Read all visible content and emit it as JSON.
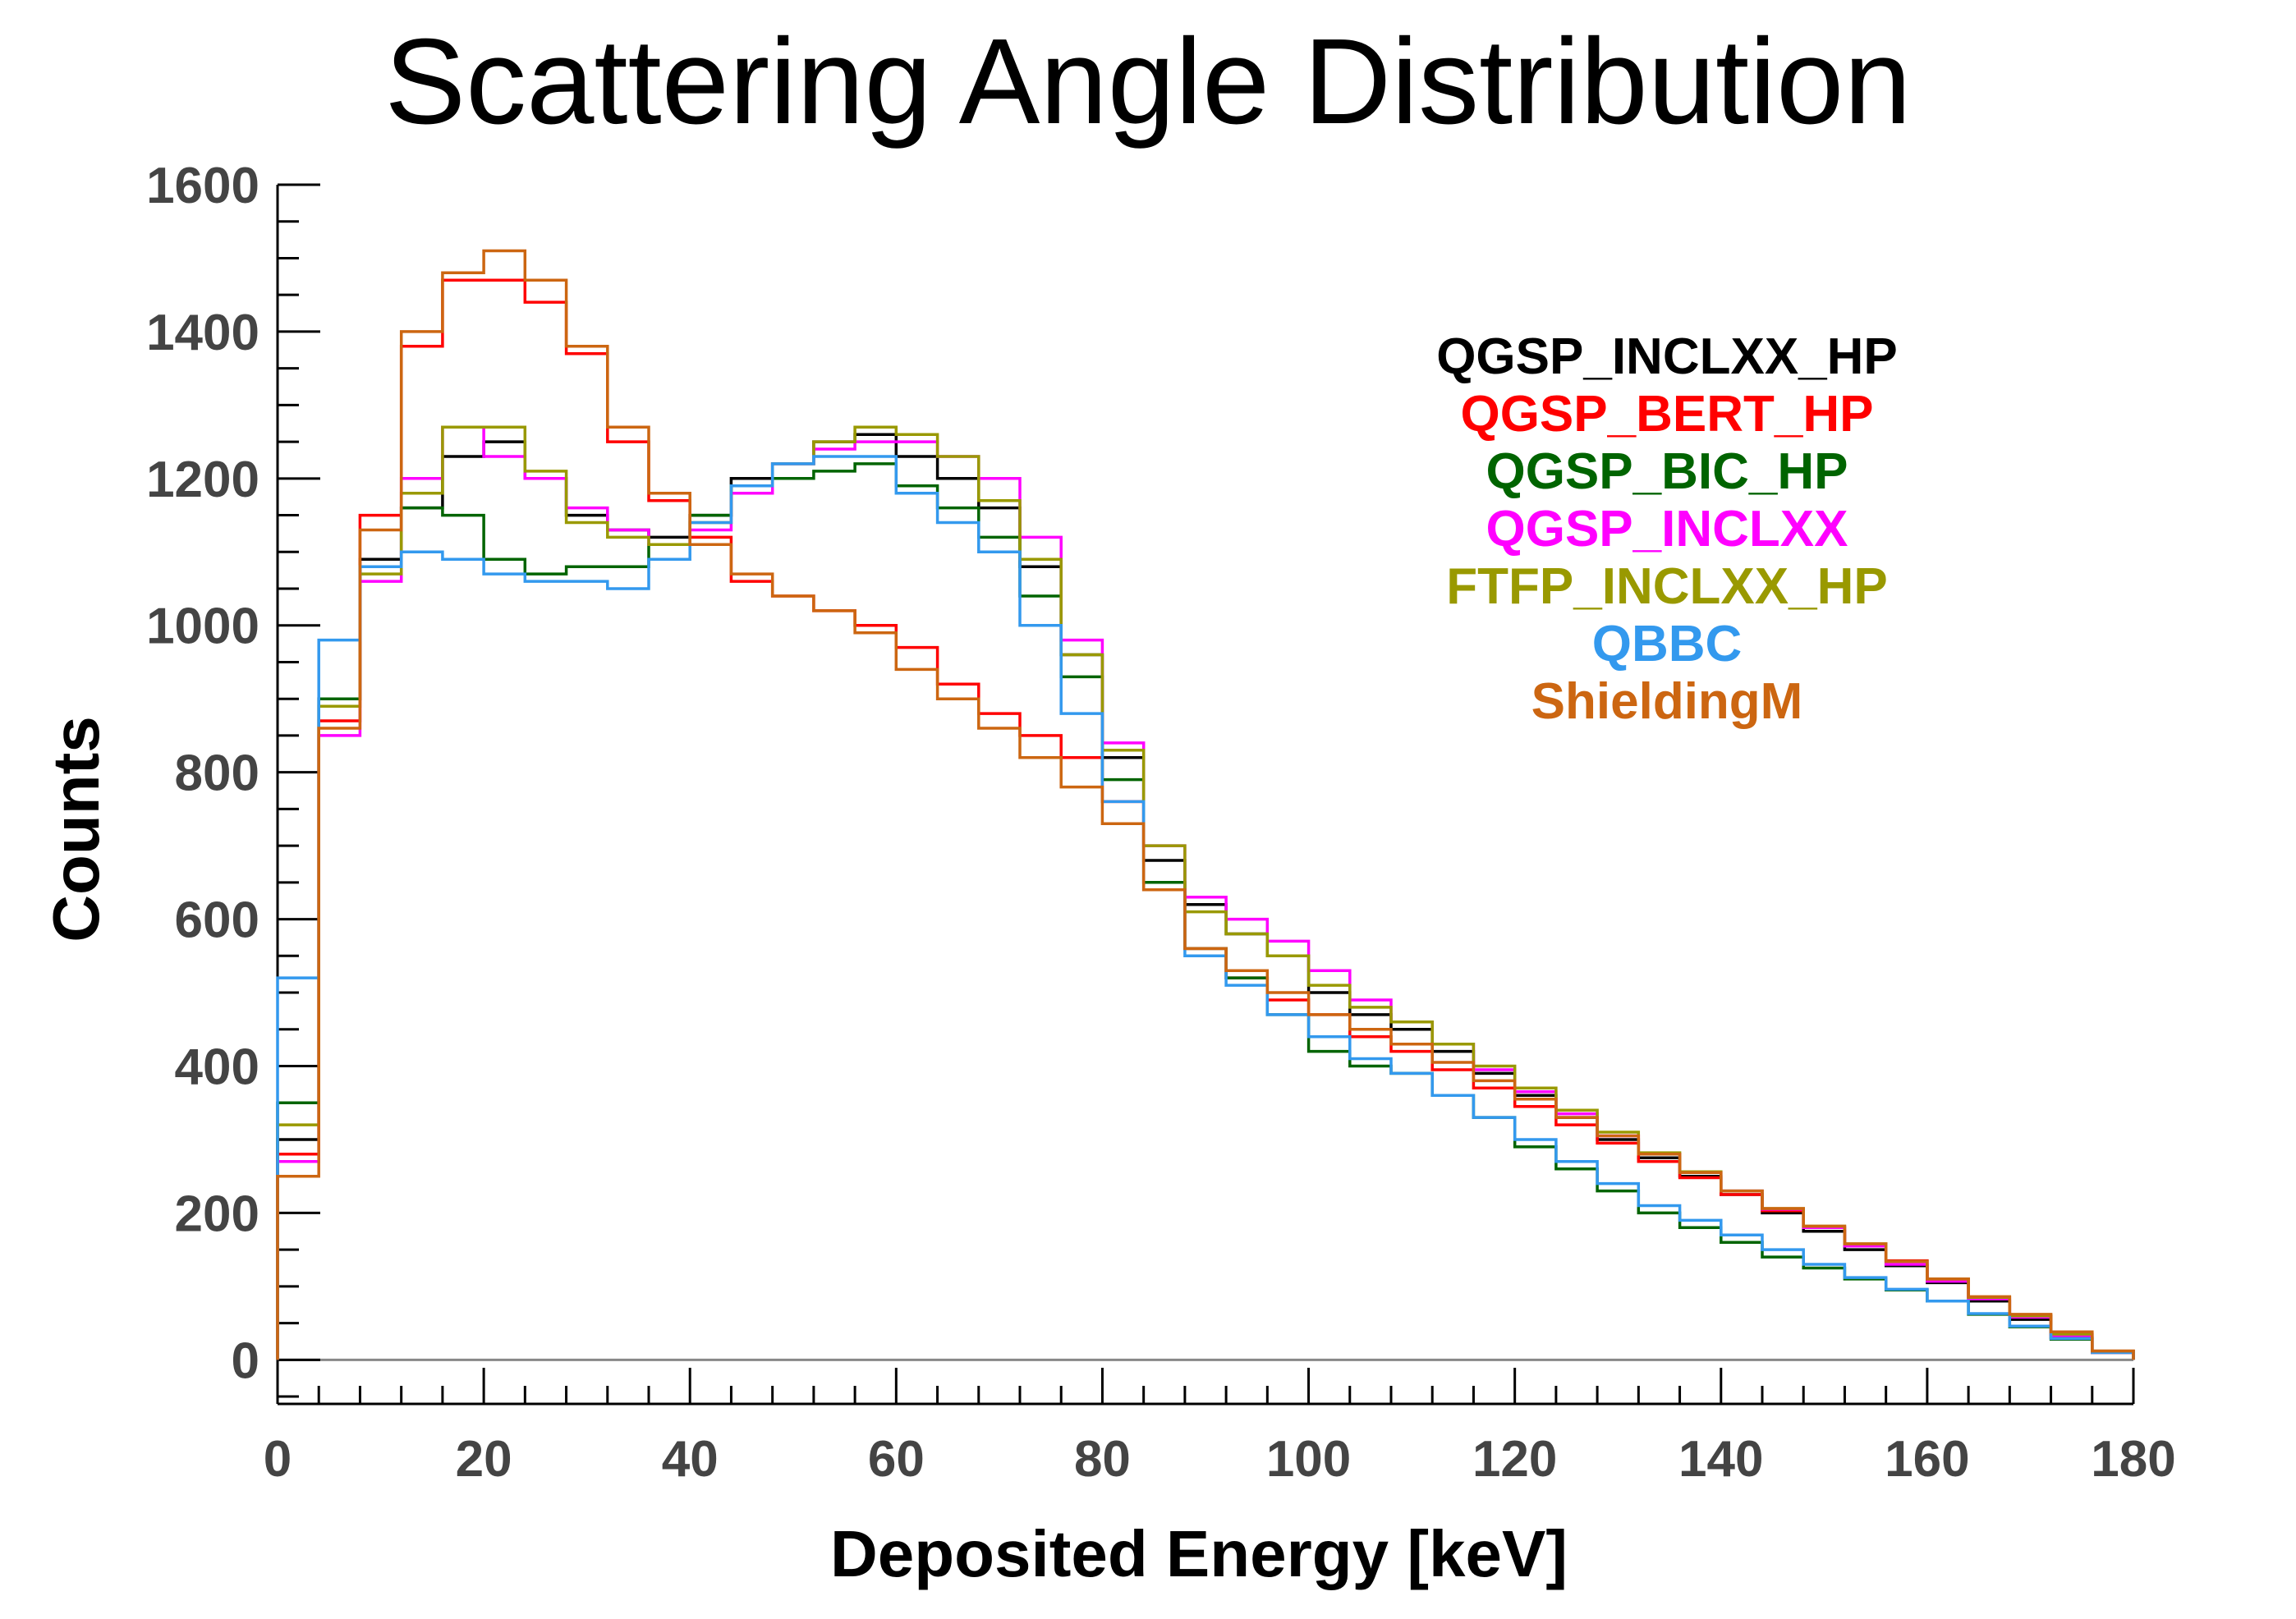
{
  "chart_data": {
    "type": "line",
    "title": "Scattering Angle Distribution",
    "xlabel": "Deposited Energy [keV]",
    "ylabel": "Counts",
    "xlim": [
      0,
      180
    ],
    "ylim": [
      -60,
      1600
    ],
    "xticks": [
      "0",
      "20",
      "40",
      "60",
      "80",
      "100",
      "120",
      "140",
      "160",
      "180"
    ],
    "yticks": [
      "0",
      "200",
      "400",
      "600",
      "800",
      "1000",
      "1200",
      "1400",
      "1600"
    ],
    "grid": false,
    "legend_position": "top-right",
    "x": [
      2,
      6,
      10,
      14,
      18,
      22,
      26,
      30,
      34,
      38,
      42,
      46,
      50,
      54,
      58,
      62,
      66,
      70,
      74,
      78,
      82,
      86,
      90,
      94,
      98,
      102,
      106,
      110,
      114,
      118,
      122,
      126,
      130,
      134,
      138,
      142,
      146,
      150,
      154,
      158,
      162,
      166,
      170,
      174,
      178
    ],
    "series": [
      {
        "name": "QGSP_INCLXX_HP",
        "color": "#000000",
        "values": [
          300,
          900,
          1090,
          1160,
          1230,
          1250,
          1200,
          1150,
          1130,
          1120,
          1150,
          1200,
          1220,
          1250,
          1260,
          1230,
          1200,
          1160,
          1080,
          960,
          820,
          680,
          620,
          580,
          550,
          500,
          470,
          450,
          420,
          390,
          360,
          330,
          300,
          275,
          250,
          225,
          200,
          175,
          150,
          128,
          105,
          80,
          55,
          30,
          10
        ]
      },
      {
        "name": "QGSP_BERT_HP",
        "color": "#ff0000",
        "values": [
          280,
          870,
          1150,
          1380,
          1470,
          1470,
          1440,
          1370,
          1250,
          1170,
          1120,
          1060,
          1040,
          1020,
          1000,
          970,
          920,
          880,
          850,
          820,
          760,
          640,
          560,
          520,
          490,
          470,
          440,
          420,
          395,
          370,
          345,
          320,
          295,
          270,
          248,
          225,
          203,
          180,
          157,
          135,
          110,
          85,
          60,
          35,
          12
        ]
      },
      {
        "name": "QGSP_BIC_HP",
        "color": "#006400",
        "values": [
          350,
          900,
          1080,
          1160,
          1150,
          1090,
          1070,
          1080,
          1080,
          1110,
          1150,
          1190,
          1200,
          1210,
          1220,
          1190,
          1160,
          1120,
          1040,
          930,
          790,
          650,
          560,
          520,
          470,
          420,
          400,
          390,
          360,
          330,
          290,
          260,
          230,
          200,
          180,
          160,
          140,
          125,
          110,
          95,
          80,
          62,
          45,
          28,
          10
        ]
      },
      {
        "name": "QGSP_INCLXX",
        "color": "#ff00ff",
        "values": [
          270,
          850,
          1060,
          1200,
          1270,
          1230,
          1200,
          1160,
          1130,
          1110,
          1130,
          1180,
          1220,
          1240,
          1250,
          1250,
          1230,
          1200,
          1120,
          980,
          840,
          700,
          630,
          600,
          570,
          530,
          490,
          460,
          430,
          395,
          365,
          335,
          305,
          280,
          255,
          230,
          205,
          180,
          155,
          130,
          107,
          83,
          58,
          33,
          10
        ]
      },
      {
        "name": "FTFP_INCLXX_HP",
        "color": "#999900",
        "values": [
          320,
          890,
          1070,
          1180,
          1270,
          1270,
          1210,
          1140,
          1120,
          1110,
          1140,
          1190,
          1220,
          1250,
          1270,
          1260,
          1230,
          1170,
          1090,
          960,
          830,
          700,
          610,
          580,
          550,
          510,
          480,
          460,
          430,
          400,
          370,
          340,
          310,
          282,
          256,
          230,
          206,
          182,
          158,
          134,
          110,
          85,
          60,
          35,
          12
        ]
      },
      {
        "name": "QBBC",
        "color": "#3399ee",
        "values": [
          520,
          980,
          1080,
          1100,
          1090,
          1070,
          1060,
          1060,
          1050,
          1090,
          1140,
          1190,
          1220,
          1230,
          1230,
          1180,
          1140,
          1100,
          1000,
          880,
          760,
          640,
          550,
          510,
          470,
          440,
          410,
          390,
          360,
          330,
          300,
          270,
          240,
          210,
          190,
          170,
          150,
          130,
          112,
          96,
          80,
          63,
          46,
          29,
          10
        ]
      },
      {
        "name": "ShieldingM",
        "color": "#cc6611",
        "values": [
          250,
          860,
          1130,
          1400,
          1480,
          1510,
          1470,
          1380,
          1270,
          1180,
          1110,
          1070,
          1040,
          1020,
          990,
          940,
          900,
          860,
          820,
          780,
          730,
          640,
          560,
          530,
          500,
          470,
          450,
          430,
          405,
          380,
          355,
          330,
          305,
          280,
          255,
          230,
          206,
          182,
          158,
          134,
          110,
          86,
          62,
          38,
          12
        ]
      }
    ]
  }
}
